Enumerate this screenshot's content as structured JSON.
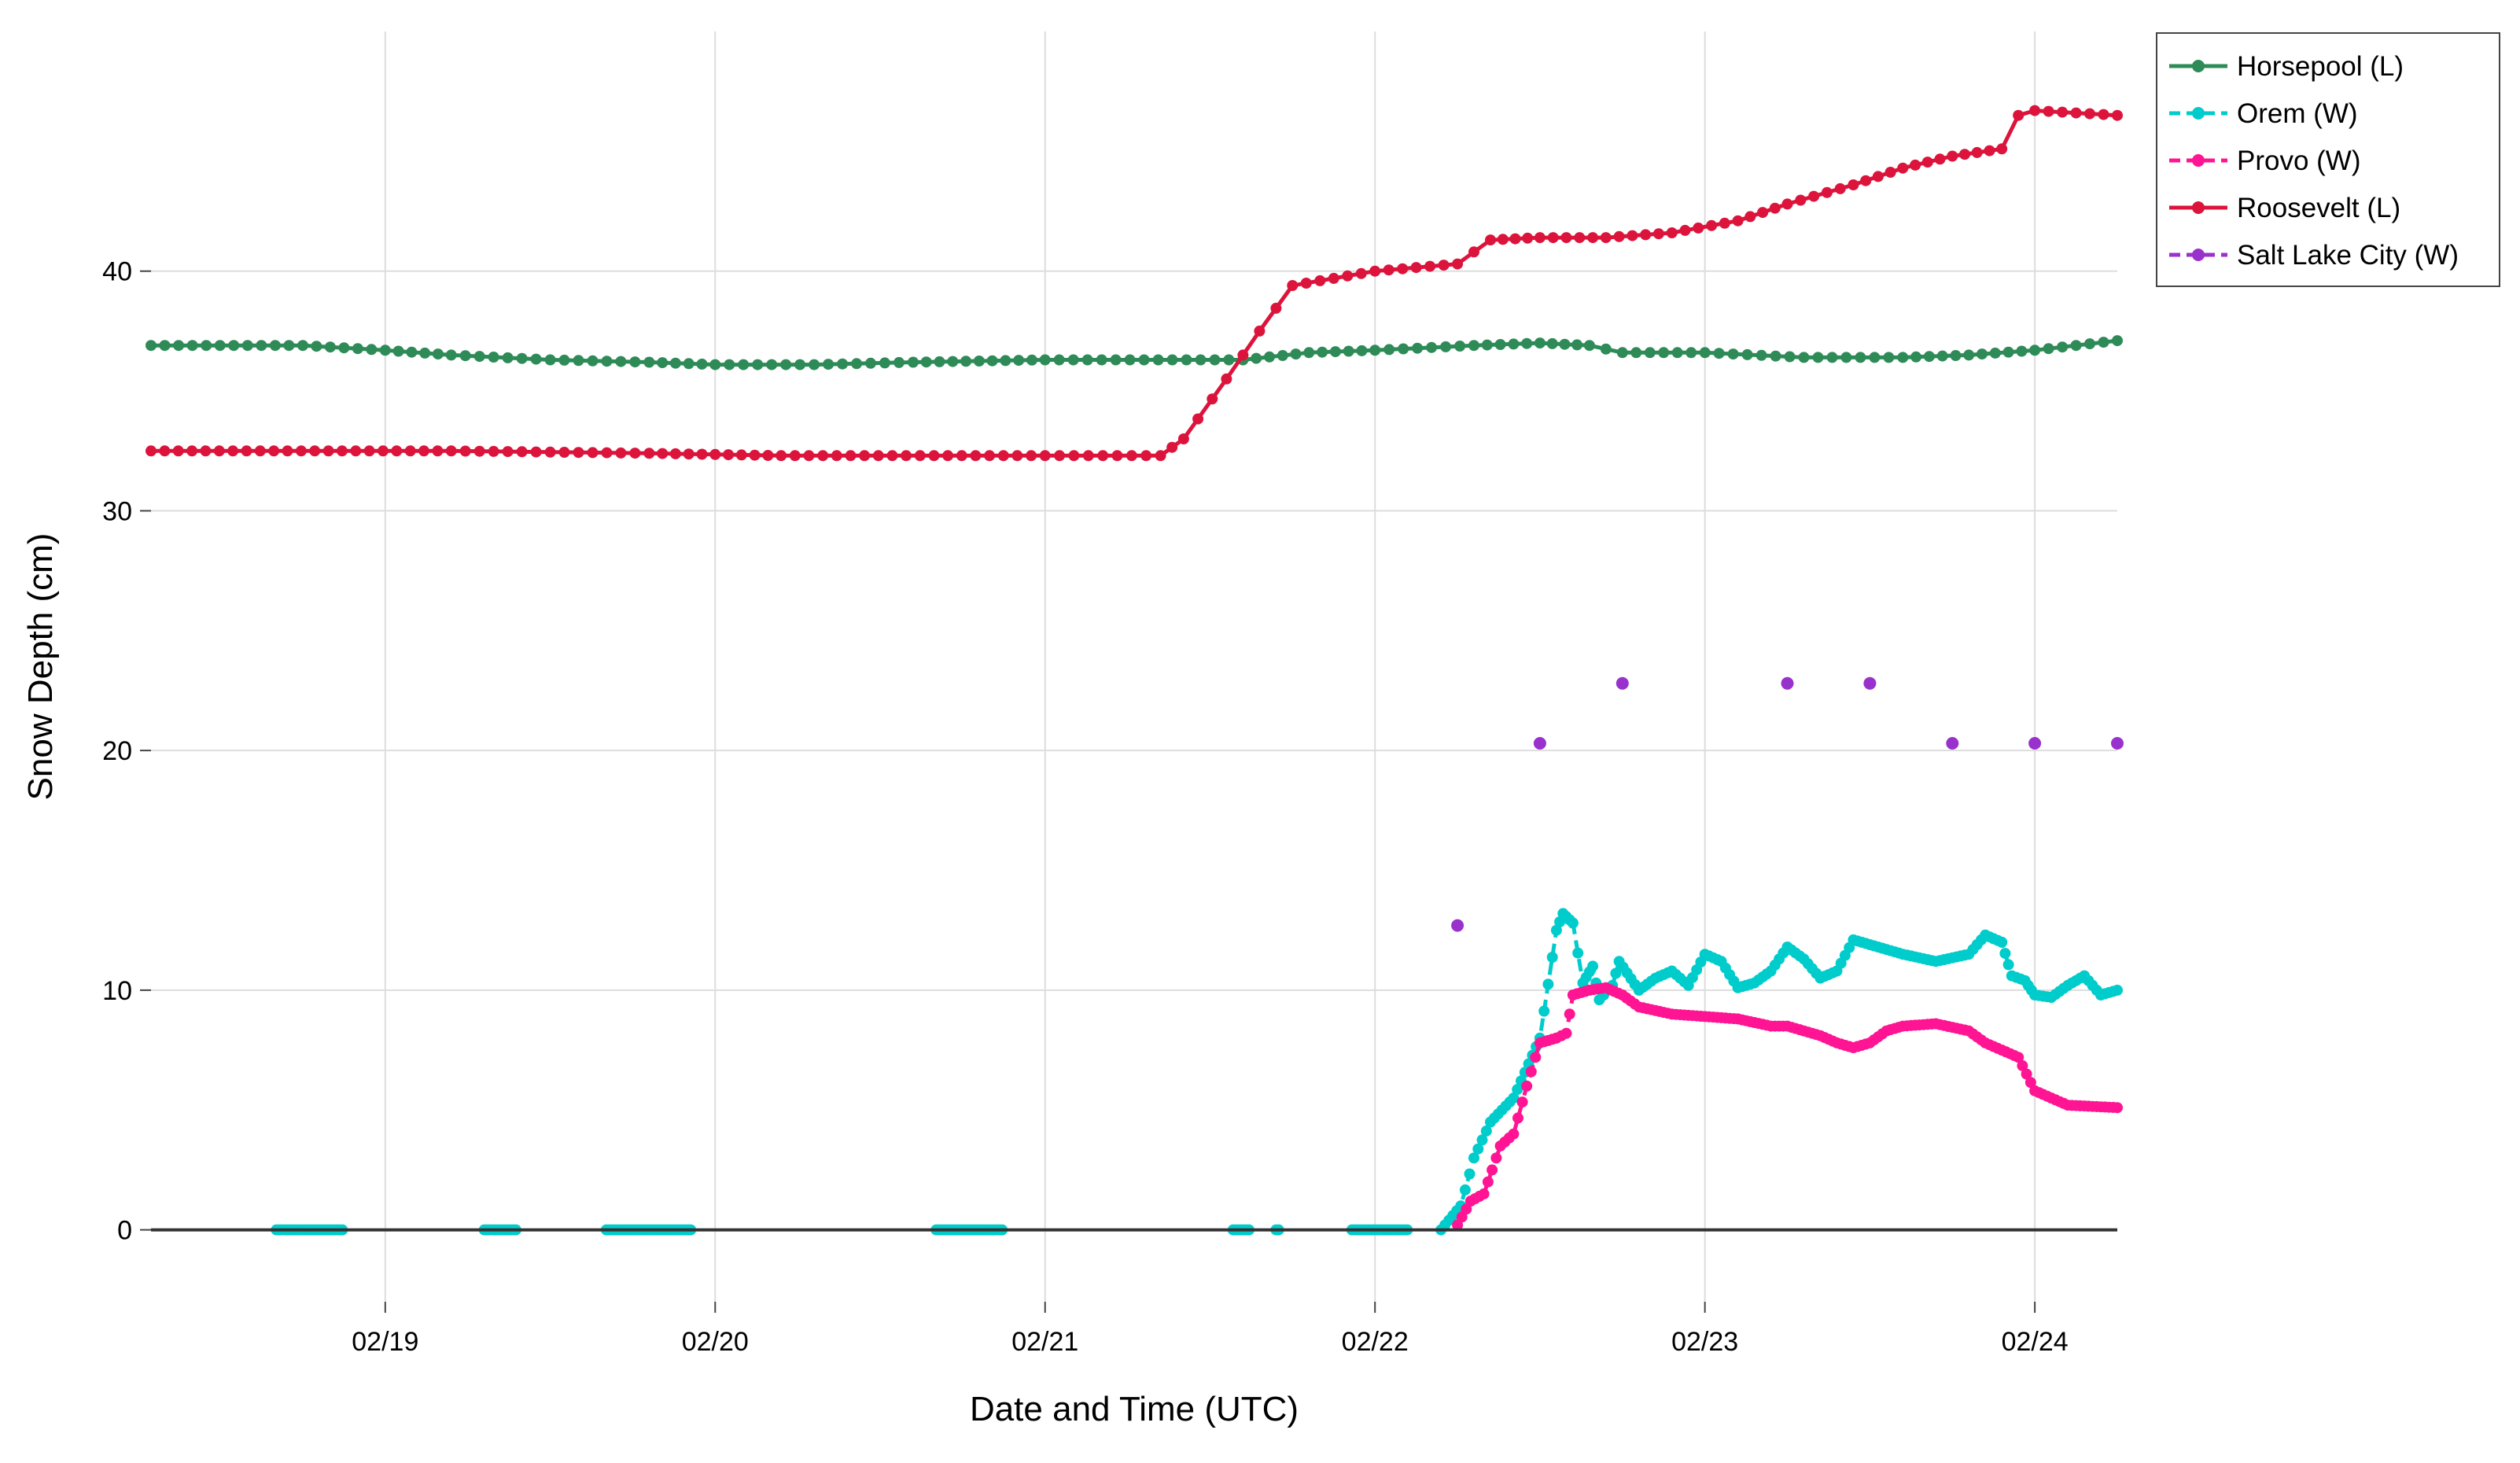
{
  "chart_data": {
    "type": "line",
    "xlabel": "Date and Time (UTC)",
    "ylabel": "Snow Depth (cm)",
    "x_unit": "day of February (UTC), fractional",
    "xlim": [
      18.29,
      24.25
    ],
    "ylim": [
      -3,
      50
    ],
    "x_tick_values": [
      19,
      20,
      21,
      22,
      23,
      24
    ],
    "x_tick_labels": [
      "02/19",
      "02/20",
      "02/21",
      "02/22",
      "02/23",
      "02/24"
    ],
    "y_tick_values": [
      0,
      10,
      20,
      30,
      40
    ],
    "y_tick_labels": [
      "0",
      "10",
      "20",
      "30",
      "40"
    ],
    "grid": true,
    "zero_line": true,
    "legend_position": "top-right, outside plot",
    "series": [
      {
        "name": "Horsepool (L)",
        "color": "#2e8b57",
        "line": "solid",
        "marker_step": 0.042,
        "points": [
          [
            18.29,
            36.9
          ],
          [
            18.75,
            36.9
          ],
          [
            19.0,
            36.7
          ],
          [
            19.2,
            36.5
          ],
          [
            19.5,
            36.3
          ],
          [
            19.8,
            36.2
          ],
          [
            20.0,
            36.1
          ],
          [
            20.3,
            36.1
          ],
          [
            20.6,
            36.2
          ],
          [
            21.0,
            36.3
          ],
          [
            21.3,
            36.3
          ],
          [
            21.6,
            36.3
          ],
          [
            21.8,
            36.6
          ],
          [
            22.0,
            36.7
          ],
          [
            22.3,
            36.9
          ],
          [
            22.5,
            37.0
          ],
          [
            22.65,
            36.9
          ],
          [
            22.75,
            36.6
          ],
          [
            23.0,
            36.6
          ],
          [
            23.3,
            36.4
          ],
          [
            23.6,
            36.4
          ],
          [
            23.8,
            36.5
          ],
          [
            24.0,
            36.7
          ],
          [
            24.25,
            37.1
          ]
        ]
      },
      {
        "name": "Orem (W)",
        "color": "#00cccc",
        "line": "dashed",
        "marker_step": 0.012,
        "points": [
          [
            22.2,
            0
          ],
          [
            22.26,
            1.0
          ],
          [
            22.3,
            3.0
          ],
          [
            22.35,
            4.5
          ],
          [
            22.42,
            5.5
          ],
          [
            22.5,
            8.0
          ],
          [
            22.55,
            12.5
          ],
          [
            22.57,
            13.2
          ],
          [
            22.6,
            12.8
          ],
          [
            22.63,
            10.3
          ],
          [
            22.66,
            11.0
          ],
          [
            22.68,
            9.6
          ],
          [
            22.72,
            10.2
          ],
          [
            22.74,
            11.2
          ],
          [
            22.8,
            10.0
          ],
          [
            22.85,
            10.5
          ],
          [
            22.9,
            10.8
          ],
          [
            22.95,
            10.2
          ],
          [
            23.0,
            11.5
          ],
          [
            23.05,
            11.2
          ],
          [
            23.1,
            10.1
          ],
          [
            23.15,
            10.3
          ],
          [
            23.2,
            10.8
          ],
          [
            23.25,
            11.8
          ],
          [
            23.3,
            11.3
          ],
          [
            23.35,
            10.5
          ],
          [
            23.4,
            10.8
          ],
          [
            23.45,
            12.1
          ],
          [
            23.5,
            11.9
          ],
          [
            23.6,
            11.5
          ],
          [
            23.7,
            11.2
          ],
          [
            23.8,
            11.5
          ],
          [
            23.85,
            12.3
          ],
          [
            23.9,
            12.0
          ],
          [
            23.93,
            10.6
          ],
          [
            23.97,
            10.4
          ],
          [
            24.0,
            9.8
          ],
          [
            24.05,
            9.7
          ],
          [
            24.1,
            10.2
          ],
          [
            24.15,
            10.6
          ],
          [
            24.2,
            9.8
          ],
          [
            24.25,
            10.0
          ]
        ]
      },
      {
        "name": "Provo (W)",
        "color": "#ff1493",
        "line": "dashed",
        "marker_step": 0.012,
        "points": [
          [
            22.25,
            0.2
          ],
          [
            22.29,
            1.2
          ],
          [
            22.33,
            1.5
          ],
          [
            22.38,
            3.5
          ],
          [
            22.42,
            4.0
          ],
          [
            22.46,
            6.0
          ],
          [
            22.5,
            7.8
          ],
          [
            22.55,
            8.0
          ],
          [
            22.58,
            8.2
          ],
          [
            22.6,
            9.8
          ],
          [
            22.65,
            10.0
          ],
          [
            22.7,
            10.1
          ],
          [
            22.75,
            9.8
          ],
          [
            22.8,
            9.3
          ],
          [
            22.9,
            9.0
          ],
          [
            23.0,
            8.9
          ],
          [
            23.1,
            8.8
          ],
          [
            23.2,
            8.5
          ],
          [
            23.25,
            8.5
          ],
          [
            23.3,
            8.3
          ],
          [
            23.35,
            8.1
          ],
          [
            23.4,
            7.8
          ],
          [
            23.45,
            7.6
          ],
          [
            23.5,
            7.8
          ],
          [
            23.55,
            8.3
          ],
          [
            23.6,
            8.5
          ],
          [
            23.7,
            8.6
          ],
          [
            23.8,
            8.3
          ],
          [
            23.85,
            7.8
          ],
          [
            23.9,
            7.5
          ],
          [
            23.95,
            7.2
          ],
          [
            24.0,
            5.8
          ],
          [
            24.05,
            5.5
          ],
          [
            24.1,
            5.2
          ],
          [
            24.25,
            5.1
          ]
        ]
      },
      {
        "name": "Roosevelt (L)",
        "color": "#dc143c",
        "line": "solid",
        "marker_step": 0.042,
        "points": [
          [
            18.29,
            32.5
          ],
          [
            19.2,
            32.5
          ],
          [
            19.8,
            32.4
          ],
          [
            20.2,
            32.3
          ],
          [
            21.0,
            32.3
          ],
          [
            21.35,
            32.3
          ],
          [
            21.42,
            33.0
          ],
          [
            21.55,
            35.5
          ],
          [
            21.65,
            37.5
          ],
          [
            21.75,
            39.4
          ],
          [
            22.0,
            40.0
          ],
          [
            22.25,
            40.3
          ],
          [
            22.35,
            41.3
          ],
          [
            22.5,
            41.4
          ],
          [
            22.7,
            41.4
          ],
          [
            22.9,
            41.6
          ],
          [
            23.1,
            42.1
          ],
          [
            23.25,
            42.8
          ],
          [
            23.45,
            43.6
          ],
          [
            23.6,
            44.3
          ],
          [
            23.75,
            44.8
          ],
          [
            23.9,
            45.1
          ],
          [
            23.95,
            46.5
          ],
          [
            24.0,
            46.7
          ],
          [
            24.25,
            46.5
          ]
        ]
      },
      {
        "name": "Salt Lake City (W)",
        "color": "#9932cc",
        "line": "dashed",
        "marker_step": 0,
        "points": [
          [
            22.25,
            12.7
          ],
          [
            22.5,
            20.3
          ],
          [
            22.75,
            22.8
          ],
          [
            23.25,
            22.8
          ],
          [
            23.5,
            22.8
          ],
          [
            23.75,
            20.3
          ],
          [
            24.0,
            20.3
          ],
          [
            24.25,
            20.3
          ]
        ]
      }
    ],
    "zero_runs": {
      "name": "Orem (W)",
      "ranges": [
        [
          18.67,
          18.87
        ],
        [
          19.3,
          19.4
        ],
        [
          19.67,
          19.93
        ],
        [
          20.67,
          20.87
        ],
        [
          21.57,
          21.62
        ],
        [
          21.7,
          21.71
        ],
        [
          21.93,
          22.1
        ]
      ]
    }
  }
}
